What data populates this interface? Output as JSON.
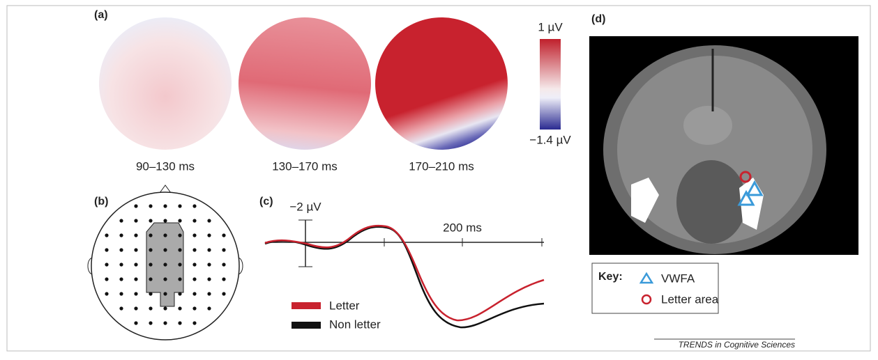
{
  "panel_a": {
    "label": "(a)",
    "colorbar_max": "1 µV",
    "colorbar_min": "−1.4 µV",
    "maps": [
      "90–130 ms",
      "130–170 ms",
      "170–210 ms"
    ]
  },
  "panel_b": {
    "label": "(b)"
  },
  "panel_c": {
    "label": "(c)",
    "amplitude_scale": "−2 µV",
    "time_scale": "200 ms",
    "legend": [
      "Letter",
      "Non letter"
    ]
  },
  "panel_d": {
    "label": "(d)",
    "key_title": "Key:",
    "key": [
      "VWFA",
      "Letter area"
    ]
  },
  "footer": "TRENDS in Cognitive Sciences"
}
